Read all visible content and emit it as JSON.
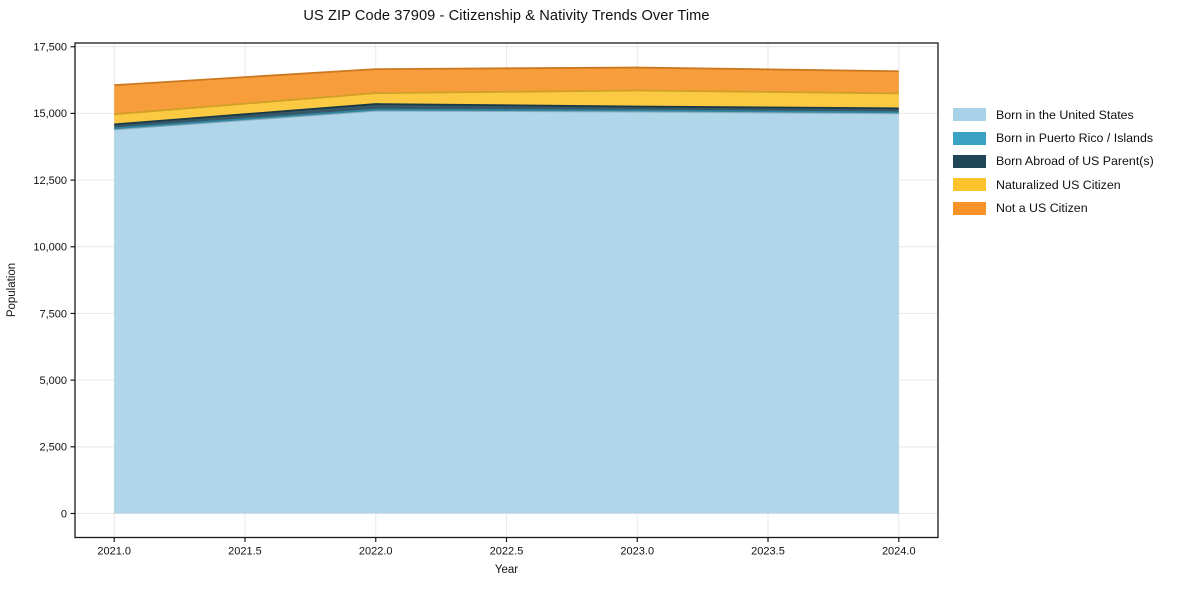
{
  "window": {
    "background": "#ffffff"
  },
  "chart": {
    "title": "US ZIP Code 37909 - Citizenship & Nativity Trends Over Time",
    "xlabel": "Year",
    "ylabel": "Population"
  },
  "chart_data": {
    "type": "area",
    "stacked": true,
    "title": "US ZIP Code 37909 - Citizenship & Nativity Trends Over Time",
    "xlabel": "Year",
    "ylabel": "Population",
    "x": [
      2021,
      2022,
      2023,
      2024
    ],
    "series": [
      {
        "name": "Born in the United States",
        "color": "#a8d2e8",
        "values": [
          14400,
          15100,
          15070,
          15000
        ]
      },
      {
        "name": "Born in Puerto Rico / Islands",
        "color": "#3aa2c2",
        "values": [
          40,
          40,
          40,
          40
        ]
      },
      {
        "name": "Born Abroad of US Parent(s)",
        "color": "#1f4557",
        "values": [
          150,
          210,
          150,
          150
        ]
      },
      {
        "name": "Naturalized US Citizen",
        "color": "#fcc32d",
        "values": [
          380,
          410,
          600,
          560
        ]
      },
      {
        "name": "Not a US Citizen",
        "color": "#f79227",
        "values": [
          1090,
          900,
          860,
          830
        ]
      }
    ],
    "xticks": [
      {
        "v": 2021.0,
        "label": "2021.0"
      },
      {
        "v": 2021.5,
        "label": "2021.5"
      },
      {
        "v": 2022.0,
        "label": "2022.0"
      },
      {
        "v": 2022.5,
        "label": "2022.5"
      },
      {
        "v": 2023.0,
        "label": "2023.0"
      },
      {
        "v": 2023.5,
        "label": "2023.5"
      },
      {
        "v": 2024.0,
        "label": "2024.0"
      }
    ],
    "yticks": [
      {
        "v": 0,
        "label": "0"
      },
      {
        "v": 2500,
        "label": "2,500"
      },
      {
        "v": 5000,
        "label": "5,000"
      },
      {
        "v": 7500,
        "label": "7,500"
      },
      {
        "v": 10000,
        "label": "10,000"
      },
      {
        "v": 12500,
        "label": "12,500"
      },
      {
        "v": 15000,
        "label": "15,000"
      },
      {
        "v": 17500,
        "label": "17,500"
      }
    ],
    "xlim": [
      2020.85,
      2024.15
    ],
    "ylim": [
      -900,
      17640
    ],
    "grid": true,
    "grid_color": "#e8e8e8",
    "spine_color": "#1a1a1a",
    "legend_position": "right-outside"
  }
}
